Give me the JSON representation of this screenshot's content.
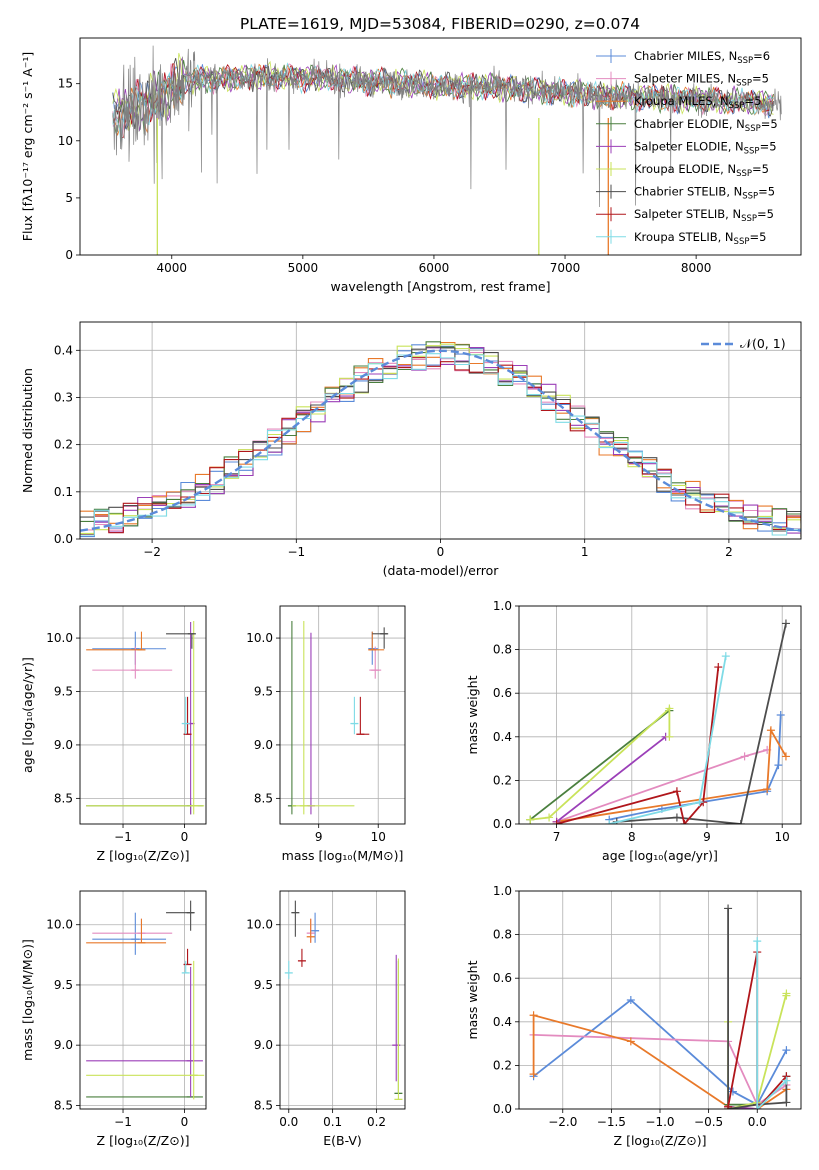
{
  "figure_title": "PLATE=1619, MJD=53084, FIBERID=0290, z=0.074",
  "colors": {
    "chabrier_miles": "#5b8bd9",
    "salpeter_miles": "#e38bbf",
    "kroupa_miles": "#e8792a",
    "chabrier_elodie": "#4a7f3e",
    "salpeter_elodie": "#9b3fb8",
    "kroupa_elodie": "#c9e35a",
    "chabrier_stelib": "#4d4d4d",
    "salpeter_stelib": "#b0161b",
    "kroupa_stelib": "#7fdbe6",
    "data": "#808080",
    "normal": "#5b8bd9"
  },
  "chart_data": [
    {
      "type": "line",
      "id": "spectrum",
      "xlabel": "wavelength [Angstrom, rest frame]",
      "ylabel": "Flux [fλ10⁻¹⁷ erg cm⁻² s⁻¹ A⁻¹]",
      "xlim": [
        3300,
        8800
      ],
      "ylim": [
        0,
        19
      ],
      "xticks": [
        "4000",
        "5000",
        "6000",
        "7000",
        "8000"
      ],
      "yticks": [
        "0",
        "5",
        "10",
        "15"
      ],
      "legend_position": "top-right",
      "legend": [
        {
          "label": "Chabrier MILES, N",
          "sub": "SSP",
          "suffix": "=6",
          "color_key": "chabrier_miles"
        },
        {
          "label": "Salpeter MILES, N",
          "sub": "SSP",
          "suffix": "=5",
          "color_key": "salpeter_miles"
        },
        {
          "label": "Kroupa MILES, N",
          "sub": "SSP",
          "suffix": "=5",
          "color_key": "kroupa_miles"
        },
        {
          "label": "Chabrier ELODIE, N",
          "sub": "SSP",
          "suffix": "=5",
          "color_key": "chabrier_elodie"
        },
        {
          "label": "Salpeter ELODIE, N",
          "sub": "SSP",
          "suffix": "=5",
          "color_key": "salpeter_elodie"
        },
        {
          "label": "Kroupa ELODIE, N",
          "sub": "SSP",
          "suffix": "=5",
          "color_key": "kroupa_elodie"
        },
        {
          "label": "Chabrier STELIB, N",
          "sub": "SSP",
          "suffix": "=5",
          "color_key": "chabrier_stelib"
        },
        {
          "label": "Salpeter STELIB, N",
          "sub": "SSP",
          "suffix": "=5",
          "color_key": "salpeter_stelib"
        },
        {
          "label": "Kroupa STELIB, N",
          "sub": "SSP",
          "suffix": "=5",
          "color_key": "kroupa_stelib"
        }
      ],
      "continuum": {
        "x": [
          3550,
          3700,
          3900,
          4100,
          4300,
          4600,
          4900,
          5200,
          5500,
          5800,
          6100,
          6400,
          6700,
          7000,
          7300,
          7600,
          8000,
          8400,
          8600
        ],
        "y": [
          12.2,
          12.8,
          13.8,
          15.3,
          15.4,
          15.6,
          15.6,
          15.4,
          15.2,
          15.0,
          14.8,
          14.7,
          14.5,
          14.2,
          14.0,
          13.8,
          13.6,
          13.4,
          13.3
        ]
      },
      "data_range": [
        3550,
        8650
      ],
      "model_range": [
        3550,
        8600
      ],
      "dips": [
        {
          "x": 3890,
          "color_key": "kroupa_elodie"
        },
        {
          "x": 6800,
          "color_key": "kroupa_elodie"
        },
        {
          "x": 7330,
          "color_key": "kroupa_miles"
        }
      ]
    },
    {
      "type": "bar",
      "id": "residuals",
      "xlabel": "(data-model)/error",
      "ylabel": "Normed distribution",
      "xlim": [
        -2.5,
        2.5
      ],
      "ylim": [
        0,
        0.46
      ],
      "xticks": [
        "−2",
        "−1",
        "0",
        "1",
        "2"
      ],
      "yticks": [
        "0.0",
        "0.1",
        "0.2",
        "0.3",
        "0.4"
      ],
      "grid": true,
      "legend_position": "top-right",
      "legend_label": "𝒩(0, 1)",
      "bin_width": 0.1,
      "series_colors": [
        "chabrier_miles",
        "salpeter_miles",
        "kroupa_miles",
        "chabrier_elodie",
        "salpeter_elodie",
        "kroupa_elodie",
        "chabrier_stelib",
        "salpeter_stelib",
        "kroupa_stelib"
      ]
    },
    {
      "type": "scatter",
      "id": "age_vs_Z",
      "xlabel": "Z [log₁₀(Z/Z⊙)]",
      "ylabel": "age  [log₁₀(age/yr)]",
      "xlim": [
        -1.7,
        0.35
      ],
      "ylim": [
        8.26,
        10.3
      ],
      "xticks": [
        "−1",
        "0"
      ],
      "yticks": [
        "8.5",
        "9.0",
        "9.5",
        "10.0"
      ],
      "grid": true,
      "points": [
        {
          "c": "chabrier_miles",
          "x": -0.8,
          "y": 9.9,
          "xe": [
            -1.5,
            -0.3
          ],
          "ye": [
            9.75,
            10.06
          ]
        },
        {
          "c": "salpeter_miles",
          "x": -0.8,
          "y": 9.7,
          "xe": [
            -1.5,
            -0.2
          ],
          "ye": [
            9.62,
            9.92
          ]
        },
        {
          "c": "kroupa_miles",
          "x": -0.7,
          "y": 9.89,
          "xe": [
            -1.6,
            -0.7
          ],
          "ye": [
            9.89,
            10.06
          ]
        },
        {
          "c": "chabrier_elodie",
          "x": 0.1,
          "y": 8.43,
          "xe": [
            -1.6,
            0.3
          ],
          "ye": [
            8.35,
            8.45
          ]
        },
        {
          "c": "salpeter_elodie",
          "x": 0.1,
          "y": 9.2,
          "xe": [
            0.05,
            0.15
          ],
          "ye": [
            8.35,
            10.15
          ]
        },
        {
          "c": "kroupa_elodie",
          "x": 0.15,
          "y": 8.43,
          "xe": [
            -1.6,
            0.32
          ],
          "ye": [
            8.35,
            10.16
          ]
        },
        {
          "c": "chabrier_stelib",
          "x": 0.12,
          "y": 10.04,
          "xe": [
            -0.3,
            0.15
          ],
          "ye": [
            9.9,
            10.04
          ]
        },
        {
          "c": "salpeter_stelib",
          "x": 0.05,
          "y": 9.1,
          "xe": [
            0.02,
            0.08
          ],
          "ye": [
            9.1,
            9.45
          ]
        },
        {
          "c": "kroupa_stelib",
          "x": 0.02,
          "y": 9.2,
          "xe": [
            -0.02,
            0.05
          ],
          "ye": [
            9.1,
            9.45
          ]
        }
      ]
    },
    {
      "type": "scatter",
      "id": "age_vs_mass",
      "xlabel": "mass [log₁₀(M/M⊙)]",
      "ylabel": "",
      "xlim": [
        8.35,
        10.45
      ],
      "ylim": [
        8.26,
        10.3
      ],
      "xticks": [
        "9",
        "10"
      ],
      "yticks": [
        "8.5",
        "9.0",
        "9.5",
        "10.0"
      ],
      "grid": true,
      "points": [
        {
          "c": "chabrier_miles",
          "x": 9.9,
          "y": 9.9,
          "xe": [
            9.85,
            10.0
          ],
          "ye": [
            9.75,
            10.06
          ]
        },
        {
          "c": "salpeter_miles",
          "x": 9.95,
          "y": 9.7,
          "xe": [
            9.85,
            10.05
          ],
          "ye": [
            9.62,
            9.92
          ]
        },
        {
          "c": "kroupa_miles",
          "x": 9.9,
          "y": 9.89,
          "xe": [
            9.85,
            10.1
          ],
          "ye": [
            9.89,
            10.06
          ]
        },
        {
          "c": "chabrier_elodie",
          "x": 8.55,
          "y": 8.43,
          "xe": [
            8.55,
            8.55
          ],
          "ye": [
            8.35,
            10.16
          ]
        },
        {
          "c": "salpeter_elodie",
          "x": 8.87,
          "y": 8.43,
          "xe": [
            8.87,
            8.87
          ],
          "ye": [
            8.35,
            10.05
          ]
        },
        {
          "c": "kroupa_elodie",
          "x": 8.75,
          "y": 8.43,
          "xe": [
            8.55,
            9.6
          ],
          "ye": [
            8.35,
            10.16
          ]
        },
        {
          "c": "chabrier_stelib",
          "x": 10.1,
          "y": 10.04,
          "xe": [
            9.9,
            10.15
          ],
          "ye": [
            9.9,
            10.1
          ]
        },
        {
          "c": "salpeter_stelib",
          "x": 9.7,
          "y": 9.1,
          "xe": [
            9.7,
            9.85
          ],
          "ye": [
            9.1,
            9.45
          ]
        },
        {
          "c": "kroupa_stelib",
          "x": 9.6,
          "y": 9.2,
          "xe": [
            9.55,
            9.65
          ],
          "ye": [
            9.1,
            9.45
          ]
        }
      ]
    },
    {
      "type": "line",
      "id": "weight_vs_age",
      "xlabel": "age  [log₁₀(age/yr)]",
      "ylabel": "mass weight",
      "xlim": [
        6.5,
        10.25
      ],
      "ylim": [
        0,
        1.0
      ],
      "xticks": [
        "7",
        "8",
        "9",
        "10"
      ],
      "yticks": [
        "0.0",
        "0.2",
        "0.4",
        "0.6",
        "0.8",
        "1.0"
      ],
      "grid": true,
      "series": [
        {
          "c": "chabrier_miles",
          "x": [
            7.7,
            8.4,
            9.8,
            9.95,
            9.98
          ],
          "y": [
            0.02,
            0.07,
            0.15,
            0.27,
            0.5
          ]
        },
        {
          "c": "salpeter_miles",
          "x": [
            7.0,
            9.5,
            9.8
          ],
          "y": [
            0.01,
            0.31,
            0.34
          ]
        },
        {
          "c": "kroupa_miles",
          "x": [
            7.0,
            9.8,
            9.85,
            10.05
          ],
          "y": [
            0.01,
            0.16,
            0.43,
            0.31
          ]
        },
        {
          "c": "chabrier_elodie",
          "x": [
            6.65,
            8.5
          ],
          "y": [
            0.02,
            0.52
          ]
        },
        {
          "c": "salpeter_elodie",
          "x": [
            7.0,
            8.45
          ],
          "y": [
            0.01,
            0.4
          ]
        },
        {
          "c": "kroupa_elodie",
          "x": [
            6.65,
            6.9,
            8.5,
            8.5
          ],
          "y": [
            0.02,
            0.03,
            0.53,
            0.4
          ]
        },
        {
          "c": "chabrier_stelib",
          "x": [
            7.8,
            8.6,
            9.45,
            10.05
          ],
          "y": [
            0.01,
            0.03,
            0.0,
            0.92
          ]
        },
        {
          "c": "salpeter_stelib",
          "x": [
            7.0,
            8.6,
            8.7,
            8.95,
            9.15
          ],
          "y": [
            0.0,
            0.15,
            0.0,
            0.1,
            0.72
          ]
        },
        {
          "c": "kroupa_stelib",
          "x": [
            7.7,
            8.9,
            9.25
          ],
          "y": [
            0.0,
            0.1,
            0.77
          ]
        }
      ]
    },
    {
      "type": "scatter",
      "id": "mass_vs_Z",
      "xlabel": "Z [log₁₀(Z/Z⊙)]",
      "ylabel": "mass [log₁₀(M/M⊙)]",
      "xlim": [
        -1.7,
        0.35
      ],
      "ylim": [
        8.47,
        10.28
      ],
      "xticks": [
        "−1",
        "0"
      ],
      "yticks": [
        "8.5",
        "9.0",
        "9.5",
        "10.0"
      ],
      "grid": true,
      "points": [
        {
          "c": "chabrier_miles",
          "x": -0.8,
          "y": 9.88,
          "xe": [
            -1.5,
            -0.3
          ],
          "ye": [
            9.75,
            10.1
          ]
        },
        {
          "c": "salpeter_miles",
          "x": -0.7,
          "y": 9.93,
          "xe": [
            -1.5,
            -0.2
          ],
          "ye": [
            9.85,
            10.05
          ]
        },
        {
          "c": "kroupa_miles",
          "x": -0.7,
          "y": 9.85,
          "xe": [
            -1.6,
            -0.3
          ],
          "ye": [
            9.85,
            10.05
          ]
        },
        {
          "c": "chabrier_elodie",
          "x": 0.1,
          "y": 8.57,
          "xe": [
            -1.6,
            0.3
          ],
          "ye": [
            8.57,
            8.57
          ]
        },
        {
          "c": "salpeter_elodie",
          "x": 0.1,
          "y": 8.87,
          "xe": [
            -1.6,
            0.3
          ],
          "ye": [
            8.57,
            9.65
          ]
        },
        {
          "c": "kroupa_elodie",
          "x": 0.15,
          "y": 8.75,
          "xe": [
            -1.6,
            0.32
          ],
          "ye": [
            8.55,
            9.7
          ]
        },
        {
          "c": "chabrier_stelib",
          "x": 0.1,
          "y": 10.1,
          "xe": [
            -0.3,
            0.15
          ],
          "ye": [
            9.95,
            10.2
          ]
        },
        {
          "c": "salpeter_stelib",
          "x": 0.05,
          "y": 9.67,
          "xe": [
            0.02,
            0.08
          ],
          "ye": [
            9.67,
            9.8
          ]
        },
        {
          "c": "kroupa_stelib",
          "x": 0.02,
          "y": 9.6,
          "xe": [
            -0.02,
            0.05
          ],
          "ye": [
            9.6,
            9.7
          ]
        }
      ]
    },
    {
      "type": "scatter",
      "id": "mass_vs_ebv",
      "xlabel": "E(B-V)",
      "ylabel": "",
      "xlim": [
        -0.02,
        0.265
      ],
      "ylim": [
        8.47,
        10.28
      ],
      "xticks": [
        "0.0",
        "0.1",
        "0.2"
      ],
      "yticks": [
        "8.5",
        "9.0",
        "9.5",
        "10.0"
      ],
      "grid": true,
      "points": [
        {
          "c": "chabrier_miles",
          "x": 0.06,
          "y": 9.95,
          "xe": [
            0.06,
            0.06
          ],
          "ye": [
            9.85,
            10.1
          ]
        },
        {
          "c": "salpeter_miles",
          "x": 0.05,
          "y": 9.93,
          "xe": [
            0.05,
            0.05
          ],
          "ye": [
            9.85,
            10.05
          ]
        },
        {
          "c": "kroupa_miles",
          "x": 0.05,
          "y": 9.9,
          "xe": [
            0.05,
            0.05
          ],
          "ye": [
            9.85,
            10.05
          ]
        },
        {
          "c": "chabrier_elodie",
          "x": 0.25,
          "y": 8.6,
          "xe": [
            0.25,
            0.25
          ],
          "ye": [
            8.6,
            9.7
          ]
        },
        {
          "c": "salpeter_elodie",
          "x": 0.245,
          "y": 9.0,
          "xe": [
            0.245,
            0.245
          ],
          "ye": [
            8.7,
            9.75
          ]
        },
        {
          "c": "kroupa_elodie",
          "x": 0.25,
          "y": 8.55,
          "xe": [
            0.25,
            0.25
          ],
          "ye": [
            8.55,
            9.72
          ]
        },
        {
          "c": "chabrier_stelib",
          "x": 0.015,
          "y": 10.1,
          "xe": [
            0.015,
            0.015
          ],
          "ye": [
            9.9,
            10.2
          ]
        },
        {
          "c": "salpeter_stelib",
          "x": 0.03,
          "y": 9.7,
          "xe": [
            0.03,
            0.03
          ],
          "ye": [
            9.65,
            9.8
          ]
        },
        {
          "c": "kroupa_stelib",
          "x": 0.0,
          "y": 9.6,
          "xe": [
            0.0,
            0.0
          ],
          "ye": [
            9.55,
            9.7
          ]
        }
      ]
    },
    {
      "type": "line",
      "id": "weight_vs_Z",
      "xlabel": "Z [log₁₀(Z/Z⊙)]",
      "ylabel": "mass weight",
      "xlim": [
        -2.45,
        0.45
      ],
      "ylim": [
        0,
        1.0
      ],
      "xticks": [
        "−2.0",
        "−1.5",
        "−1.0",
        "−0.5",
        "0.0"
      ],
      "yticks": [
        "0.0",
        "0.2",
        "0.4",
        "0.6",
        "0.8",
        "1.0"
      ],
      "grid": true,
      "series": [
        {
          "c": "chabrier_miles",
          "x": [
            -2.3,
            -1.3,
            -0.25,
            0.0,
            0.3
          ],
          "y": [
            0.15,
            0.5,
            0.08,
            0.02,
            0.27
          ]
        },
        {
          "c": "salpeter_miles",
          "x": [
            -2.3,
            -0.3,
            0.0,
            0.3
          ],
          "y": [
            0.34,
            0.31,
            0.02,
            0.11
          ]
        },
        {
          "c": "kroupa_miles",
          "x": [
            -2.3,
            -2.3,
            -1.3,
            -0.3,
            0.0,
            0.3
          ],
          "y": [
            0.16,
            0.43,
            0.31,
            0.01,
            0.0,
            0.09
          ]
        },
        {
          "c": "chabrier_elodie",
          "x": [
            -0.3,
            0.0
          ],
          "y": [
            0.02,
            0.02
          ]
        },
        {
          "c": "salpeter_elodie",
          "x": [
            -0.3,
            0.0
          ],
          "y": [
            0.01,
            0.0
          ]
        },
        {
          "c": "kroupa_elodie",
          "x": [
            -0.3,
            -0.3,
            0.0,
            0.3,
            0.3
          ],
          "y": [
            0.4,
            0.0,
            0.03,
            0.53,
            0.52
          ]
        },
        {
          "c": "chabrier_stelib",
          "x": [
            -0.3,
            -0.3,
            0.0,
            0.3,
            0.3
          ],
          "y": [
            0.92,
            0.0,
            0.02,
            0.03,
            0.15
          ]
        },
        {
          "c": "salpeter_stelib",
          "x": [
            -0.3,
            0.0,
            0.0,
            0.3
          ],
          "y": [
            0.01,
            0.72,
            0.0,
            0.15
          ]
        },
        {
          "c": "kroupa_stelib",
          "x": [
            0.0,
            0.0,
            0.3
          ],
          "y": [
            0.77,
            0.0,
            0.13
          ]
        }
      ]
    }
  ]
}
